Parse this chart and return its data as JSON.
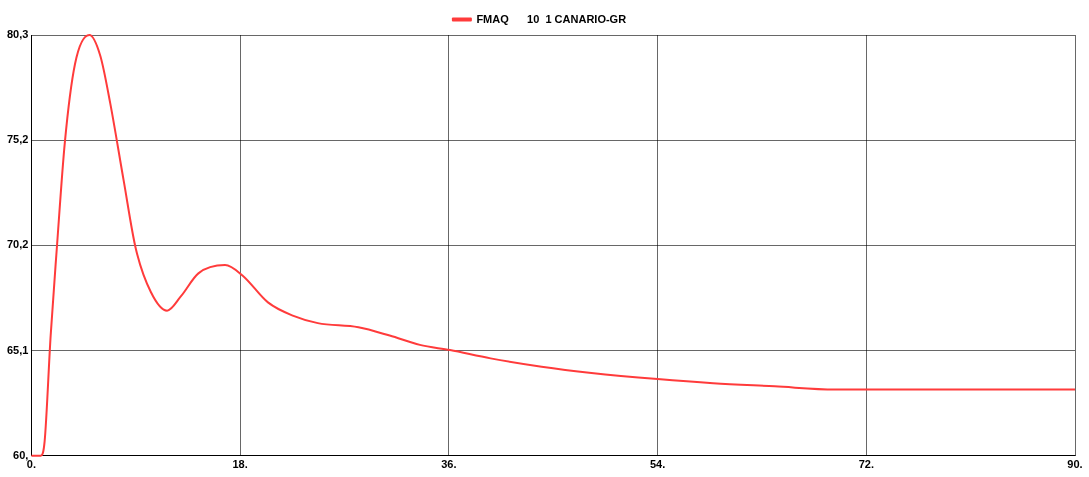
{
  "chart_data": {
    "type": "line",
    "x": [
      0,
      0.8,
      1.14,
      1.66,
      2.19,
      2.88,
      3.76,
      5.0,
      5.94,
      6.8,
      7.95,
      9.0,
      10.3,
      11.7,
      12.9,
      14.4,
      16.7,
      18.2,
      20.4,
      22.6,
      24.7,
      28.2,
      30.9,
      33.5,
      36.1,
      39.6,
      44,
      48.3,
      54,
      58.8,
      64.1,
      69.3,
      90
    ],
    "series": [
      {
        "name": "FMAQ      10  1 CANARIO-GR",
        "color": "#ff3b3b",
        "values": [
          60,
          60,
          60.7,
          65.8,
          70.0,
          75.1,
          78.9,
          80.3,
          79.3,
          77.0,
          73.3,
          70.0,
          67.9,
          67.0,
          67.7,
          68.8,
          69.2,
          68.7,
          67.4,
          66.75,
          66.4,
          66.2,
          65.8,
          65.35,
          65.1,
          64.7,
          64.3,
          64.0,
          63.7,
          63.5,
          63.35,
          63.2,
          63.2
        ]
      }
    ],
    "xlim": [
      0,
      90
    ],
    "xticks": [
      {
        "value": 0,
        "label": "0."
      },
      {
        "value": 18,
        "label": "18."
      },
      {
        "value": 36,
        "label": "36."
      },
      {
        "value": 54,
        "label": "54."
      },
      {
        "value": 72,
        "label": "72."
      },
      {
        "value": 90,
        "label": "90."
      }
    ],
    "ylim": [
      60,
      80.3
    ],
    "yticks": [
      {
        "value": 60,
        "label": "60,"
      },
      {
        "value": 65.075,
        "label": "65,1"
      },
      {
        "value": 70.15,
        "label": "70,2"
      },
      {
        "value": 75.225,
        "label": "75,2"
      },
      {
        "value": 80.3,
        "label": "80,3"
      }
    ],
    "grid": true,
    "legend": "top",
    "marker": "none",
    "line_style": "solid"
  }
}
